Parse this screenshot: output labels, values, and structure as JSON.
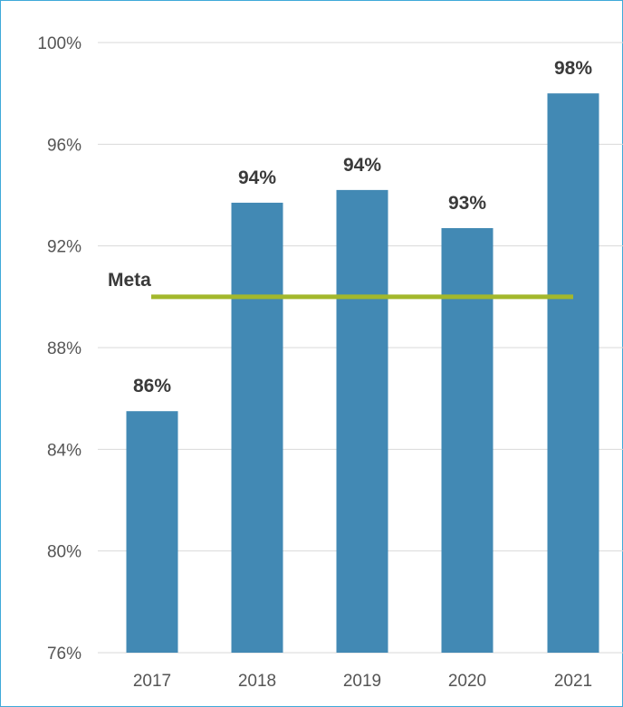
{
  "chart_data": {
    "type": "bar",
    "categories": [
      "2017",
      "2018",
      "2019",
      "2020",
      "2021"
    ],
    "values": [
      85.5,
      93.7,
      94.2,
      92.7,
      98.0
    ],
    "data_labels": [
      "86%",
      "94%",
      "94%",
      "93%",
      "98%"
    ],
    "ylim": [
      76,
      100
    ],
    "yticks": [
      76,
      80,
      84,
      88,
      92,
      96,
      100
    ],
    "ytick_labels": [
      "76%",
      "80%",
      "84%",
      "88%",
      "92%",
      "96%",
      "100%"
    ],
    "grid": true,
    "reference_line": {
      "label": "Meta",
      "value": 90
    },
    "colors": {
      "bar": "#4289b4",
      "meta_line": "#a3b82c",
      "grid": "#d9d9d9",
      "frame": "#3fa9d9"
    }
  }
}
